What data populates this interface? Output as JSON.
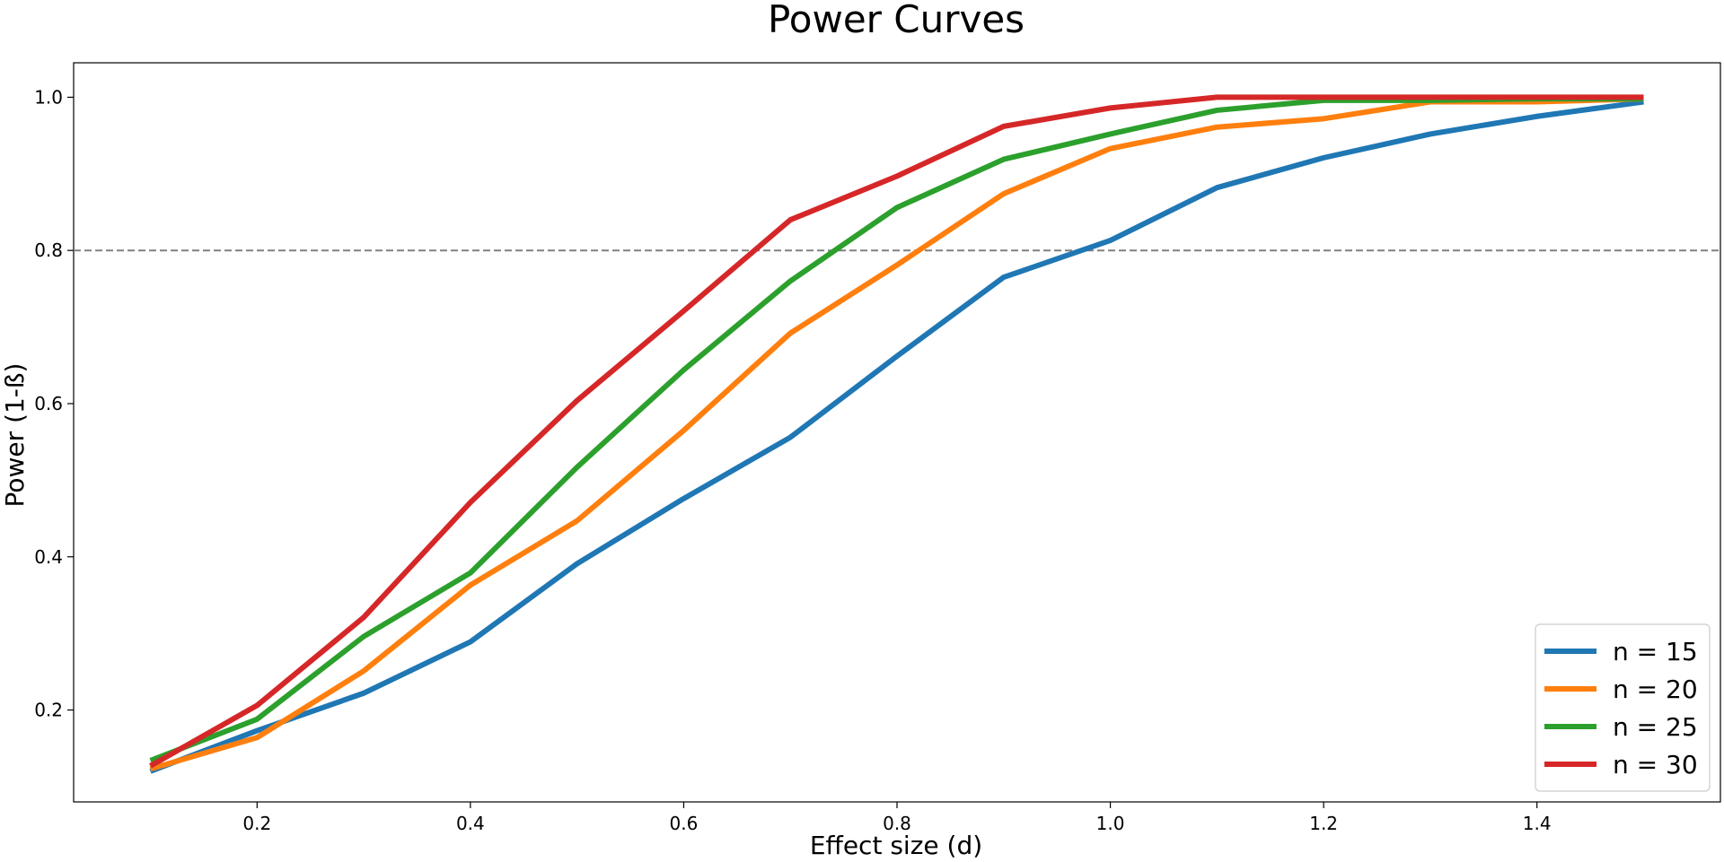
{
  "chart_data": {
    "type": "line",
    "title": "Power Curves",
    "xlabel": "Effect size (d)",
    "ylabel": "Power (1-ß)",
    "xlim": [
      0.028,
      1.572
    ],
    "ylim": [
      0.08,
      1.045
    ],
    "x_ticks": [
      0.2,
      0.4,
      0.6,
      0.8,
      1.0,
      1.2,
      1.4
    ],
    "y_ticks": [
      0.2,
      0.4,
      0.6,
      0.8,
      1.0
    ],
    "x_tick_labels": [
      "0.2",
      "0.4",
      "0.6",
      "0.8",
      "1.0",
      "1.2",
      "1.4"
    ],
    "y_tick_labels": [
      "0.2",
      "0.4",
      "0.6",
      "0.8",
      "1.0"
    ],
    "grid": false,
    "reference_line": {
      "y": 0.8,
      "style": "dashed",
      "color": "#808080"
    },
    "legend_position": "bottom-right",
    "x": [
      0.1,
      0.2,
      0.3,
      0.4,
      0.5,
      0.6,
      0.7,
      0.8,
      0.9,
      1.0,
      1.1,
      1.2,
      1.3,
      1.4,
      1.5
    ],
    "series": [
      {
        "name": "n = 15",
        "color": "#1f77b4",
        "values": [
          0.12,
          0.173,
          0.222,
          0.289,
          0.391,
          0.476,
          0.556,
          0.662,
          0.765,
          0.813,
          0.882,
          0.921,
          0.952,
          0.975,
          0.994
        ]
      },
      {
        "name": "n = 20",
        "color": "#ff7f0e",
        "values": [
          0.123,
          0.164,
          0.251,
          0.363,
          0.447,
          0.565,
          0.692,
          0.781,
          0.874,
          0.933,
          0.961,
          0.972,
          0.994,
          0.994,
          0.998
        ]
      },
      {
        "name": "n = 25",
        "color": "#2ca02c",
        "values": [
          0.134,
          0.188,
          0.296,
          0.379,
          0.517,
          0.644,
          0.76,
          0.856,
          0.919,
          0.952,
          0.983,
          0.996,
          0.996,
          0.998,
          0.998
        ]
      },
      {
        "name": "n = 30",
        "color": "#d62728",
        "values": [
          0.127,
          0.206,
          0.321,
          0.471,
          0.604,
          0.721,
          0.84,
          0.897,
          0.962,
          0.986,
          1.0,
          1.0,
          1.0,
          1.0,
          1.0
        ]
      }
    ]
  }
}
